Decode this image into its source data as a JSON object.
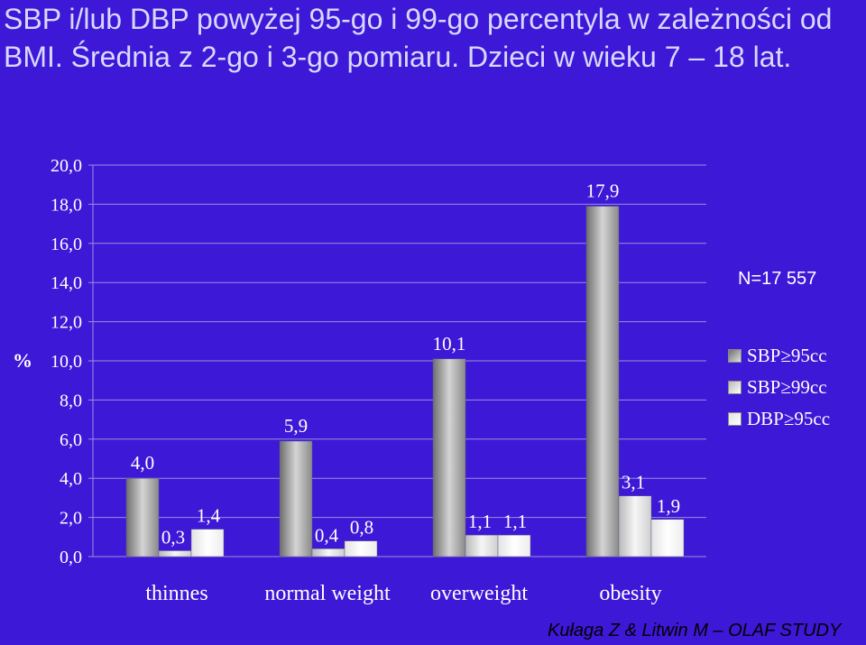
{
  "title": "SBP i/lub DBP powyżej 95-go i 99-go percentyla w zależności  od BMI. Średnia z 2-go i 3-go pomiaru. Dzieci w wieku 7 – 18 lat.",
  "sample_size": "N=17 557",
  "source": "Kułaga Z & Litwin M – OLAF STUDY",
  "chart_data": {
    "type": "bar",
    "title": "SBP i/lub DBP powyżej 95-go i 99-go percentyla w zależności  od BMI. Średnia z 2-go i 3-go pomiaru. Dzieci w wieku 7 – 18 lat.",
    "ylabel": "%",
    "xlabel": "",
    "ylim": [
      0,
      20
    ],
    "yticks": [
      "0,0",
      "2,0",
      "4,0",
      "6,0",
      "8,0",
      "10,0",
      "12,0",
      "14,0",
      "16,0",
      "18,0",
      "20,0"
    ],
    "categories": [
      "thinnes",
      "normal weight",
      "overweight",
      "obesity"
    ],
    "series": [
      {
        "name": "SBP≥95cc",
        "values": [
          4.0,
          5.9,
          10.1,
          17.9
        ],
        "labels": [
          "4,0",
          "5,9",
          "10,1",
          "17,9"
        ],
        "color": "#9a9a9a"
      },
      {
        "name": "SBP≥99cc",
        "values": [
          0.3,
          0.4,
          1.1,
          3.1
        ],
        "labels": [
          "0,3",
          "0,4",
          "1,1",
          "3,1"
        ],
        "color": "#d8d8d8"
      },
      {
        "name": "DBP≥95cc",
        "values": [
          1.4,
          0.8,
          1.1,
          1.9
        ],
        "labels": [
          "1,4",
          "0,8",
          "1,1",
          "1,9"
        ],
        "color": "#f4f4f4"
      }
    ],
    "grid": true,
    "legend_position": "right"
  }
}
